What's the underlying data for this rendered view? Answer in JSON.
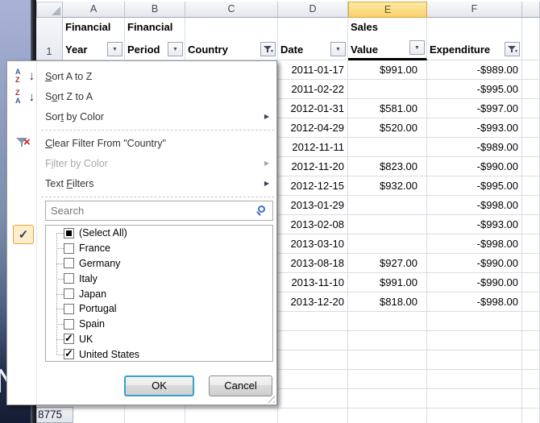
{
  "desktop": {
    "letter": "N"
  },
  "icons": {
    "sort_letter_a": "A",
    "sort_letter_z": "Z",
    "down_arrow": "↓",
    "submenu_arrow": "▶",
    "dropdown_arrow": "▼",
    "checkmark": "✓",
    "clear_x": "×"
  },
  "colors": {
    "selected_header_bg": "#F8D06B",
    "default_button_border": "#35A2CC",
    "check_highlight_bg": "#FBEEC8",
    "gridline": "#D6DDE8"
  },
  "sheet": {
    "selected_col": "E",
    "columns": [
      "A",
      "B",
      "C",
      "D",
      "E",
      "F"
    ],
    "row1_number": "1",
    "bottom_row_number": "8775",
    "headers": [
      {
        "col": "A",
        "line1": "Financial",
        "line2": "Year",
        "button": "dropdown"
      },
      {
        "col": "B",
        "line1": "Financial",
        "line2": "Period",
        "button": "dropdown"
      },
      {
        "col": "C",
        "line1": "",
        "line2": "Country",
        "button": "filter"
      },
      {
        "col": "D",
        "line1": "",
        "line2": "Date",
        "button": "dropdown"
      },
      {
        "col": "E",
        "line1": "Sales",
        "line2": "Value",
        "button": "dropdown"
      },
      {
        "col": "F",
        "line1": "",
        "line2": "Expenditure",
        "button": "filter"
      }
    ],
    "rows": [
      {
        "date": "2011-01-17",
        "sales": "$991.00",
        "expenditure": "-$989.00"
      },
      {
        "date": "2011-02-22",
        "sales": "",
        "expenditure": "-$995.00"
      },
      {
        "date": "2012-01-31",
        "sales": "$581.00",
        "expenditure": "-$997.00"
      },
      {
        "date": "2012-04-29",
        "sales": "$520.00",
        "expenditure": "-$993.00"
      },
      {
        "date": "2012-11-11",
        "sales": "",
        "expenditure": "-$989.00"
      },
      {
        "date": "2012-11-20",
        "sales": "$823.00",
        "expenditure": "-$990.00"
      },
      {
        "date": "2012-12-15",
        "sales": "$932.00",
        "expenditure": "-$995.00"
      },
      {
        "date": "2013-01-29",
        "sales": "",
        "expenditure": "-$998.00"
      },
      {
        "date": "2013-02-08",
        "sales": "",
        "expenditure": "-$993.00"
      },
      {
        "date": "2013-03-10",
        "sales": "",
        "expenditure": "-$998.00"
      },
      {
        "date": "2013-08-18",
        "sales": "$927.00",
        "expenditure": "-$990.00"
      },
      {
        "date": "2013-11-10",
        "sales": "$991.00",
        "expenditure": "-$990.00"
      },
      {
        "date": "2013-12-20",
        "sales": "$818.00",
        "expenditure": "-$998.00"
      }
    ]
  },
  "menu": {
    "items": [
      {
        "id": "sort-a-to-z",
        "label": "Sort A to Z",
        "underline": 0,
        "icon": "sort-az-icon"
      },
      {
        "id": "sort-z-to-a",
        "label": "Sort Z to A",
        "underline": 1,
        "icon": "sort-za-icon"
      },
      {
        "id": "sort-by-color",
        "label": "Sort by Color",
        "underline": 3,
        "submenu": true
      },
      {
        "sep": true
      },
      {
        "id": "clear-filter-from-country",
        "label": "Clear Filter From \"Country\"",
        "underline": 0,
        "icon": "clear-filter-icon"
      },
      {
        "id": "filter-by-color",
        "label": "Filter by Color",
        "underline": 1,
        "submenu": true,
        "disabled": true
      },
      {
        "id": "text-filters",
        "label": "Text Filters",
        "underline": 5,
        "submenu": true
      },
      {
        "sep": true
      }
    ],
    "search_placeholder": "Search",
    "filter_list": [
      {
        "label": "(Select All)",
        "state": "mixed"
      },
      {
        "label": "France",
        "state": "unchecked"
      },
      {
        "label": "Germany",
        "state": "unchecked"
      },
      {
        "label": "Italy",
        "state": "unchecked"
      },
      {
        "label": "Japan",
        "state": "unchecked"
      },
      {
        "label": "Portugal",
        "state": "unchecked"
      },
      {
        "label": "Spain",
        "state": "unchecked"
      },
      {
        "label": "UK",
        "state": "checked"
      },
      {
        "label": "United States",
        "state": "checked"
      }
    ],
    "ok_label": "OK",
    "cancel_label": "Cancel"
  }
}
